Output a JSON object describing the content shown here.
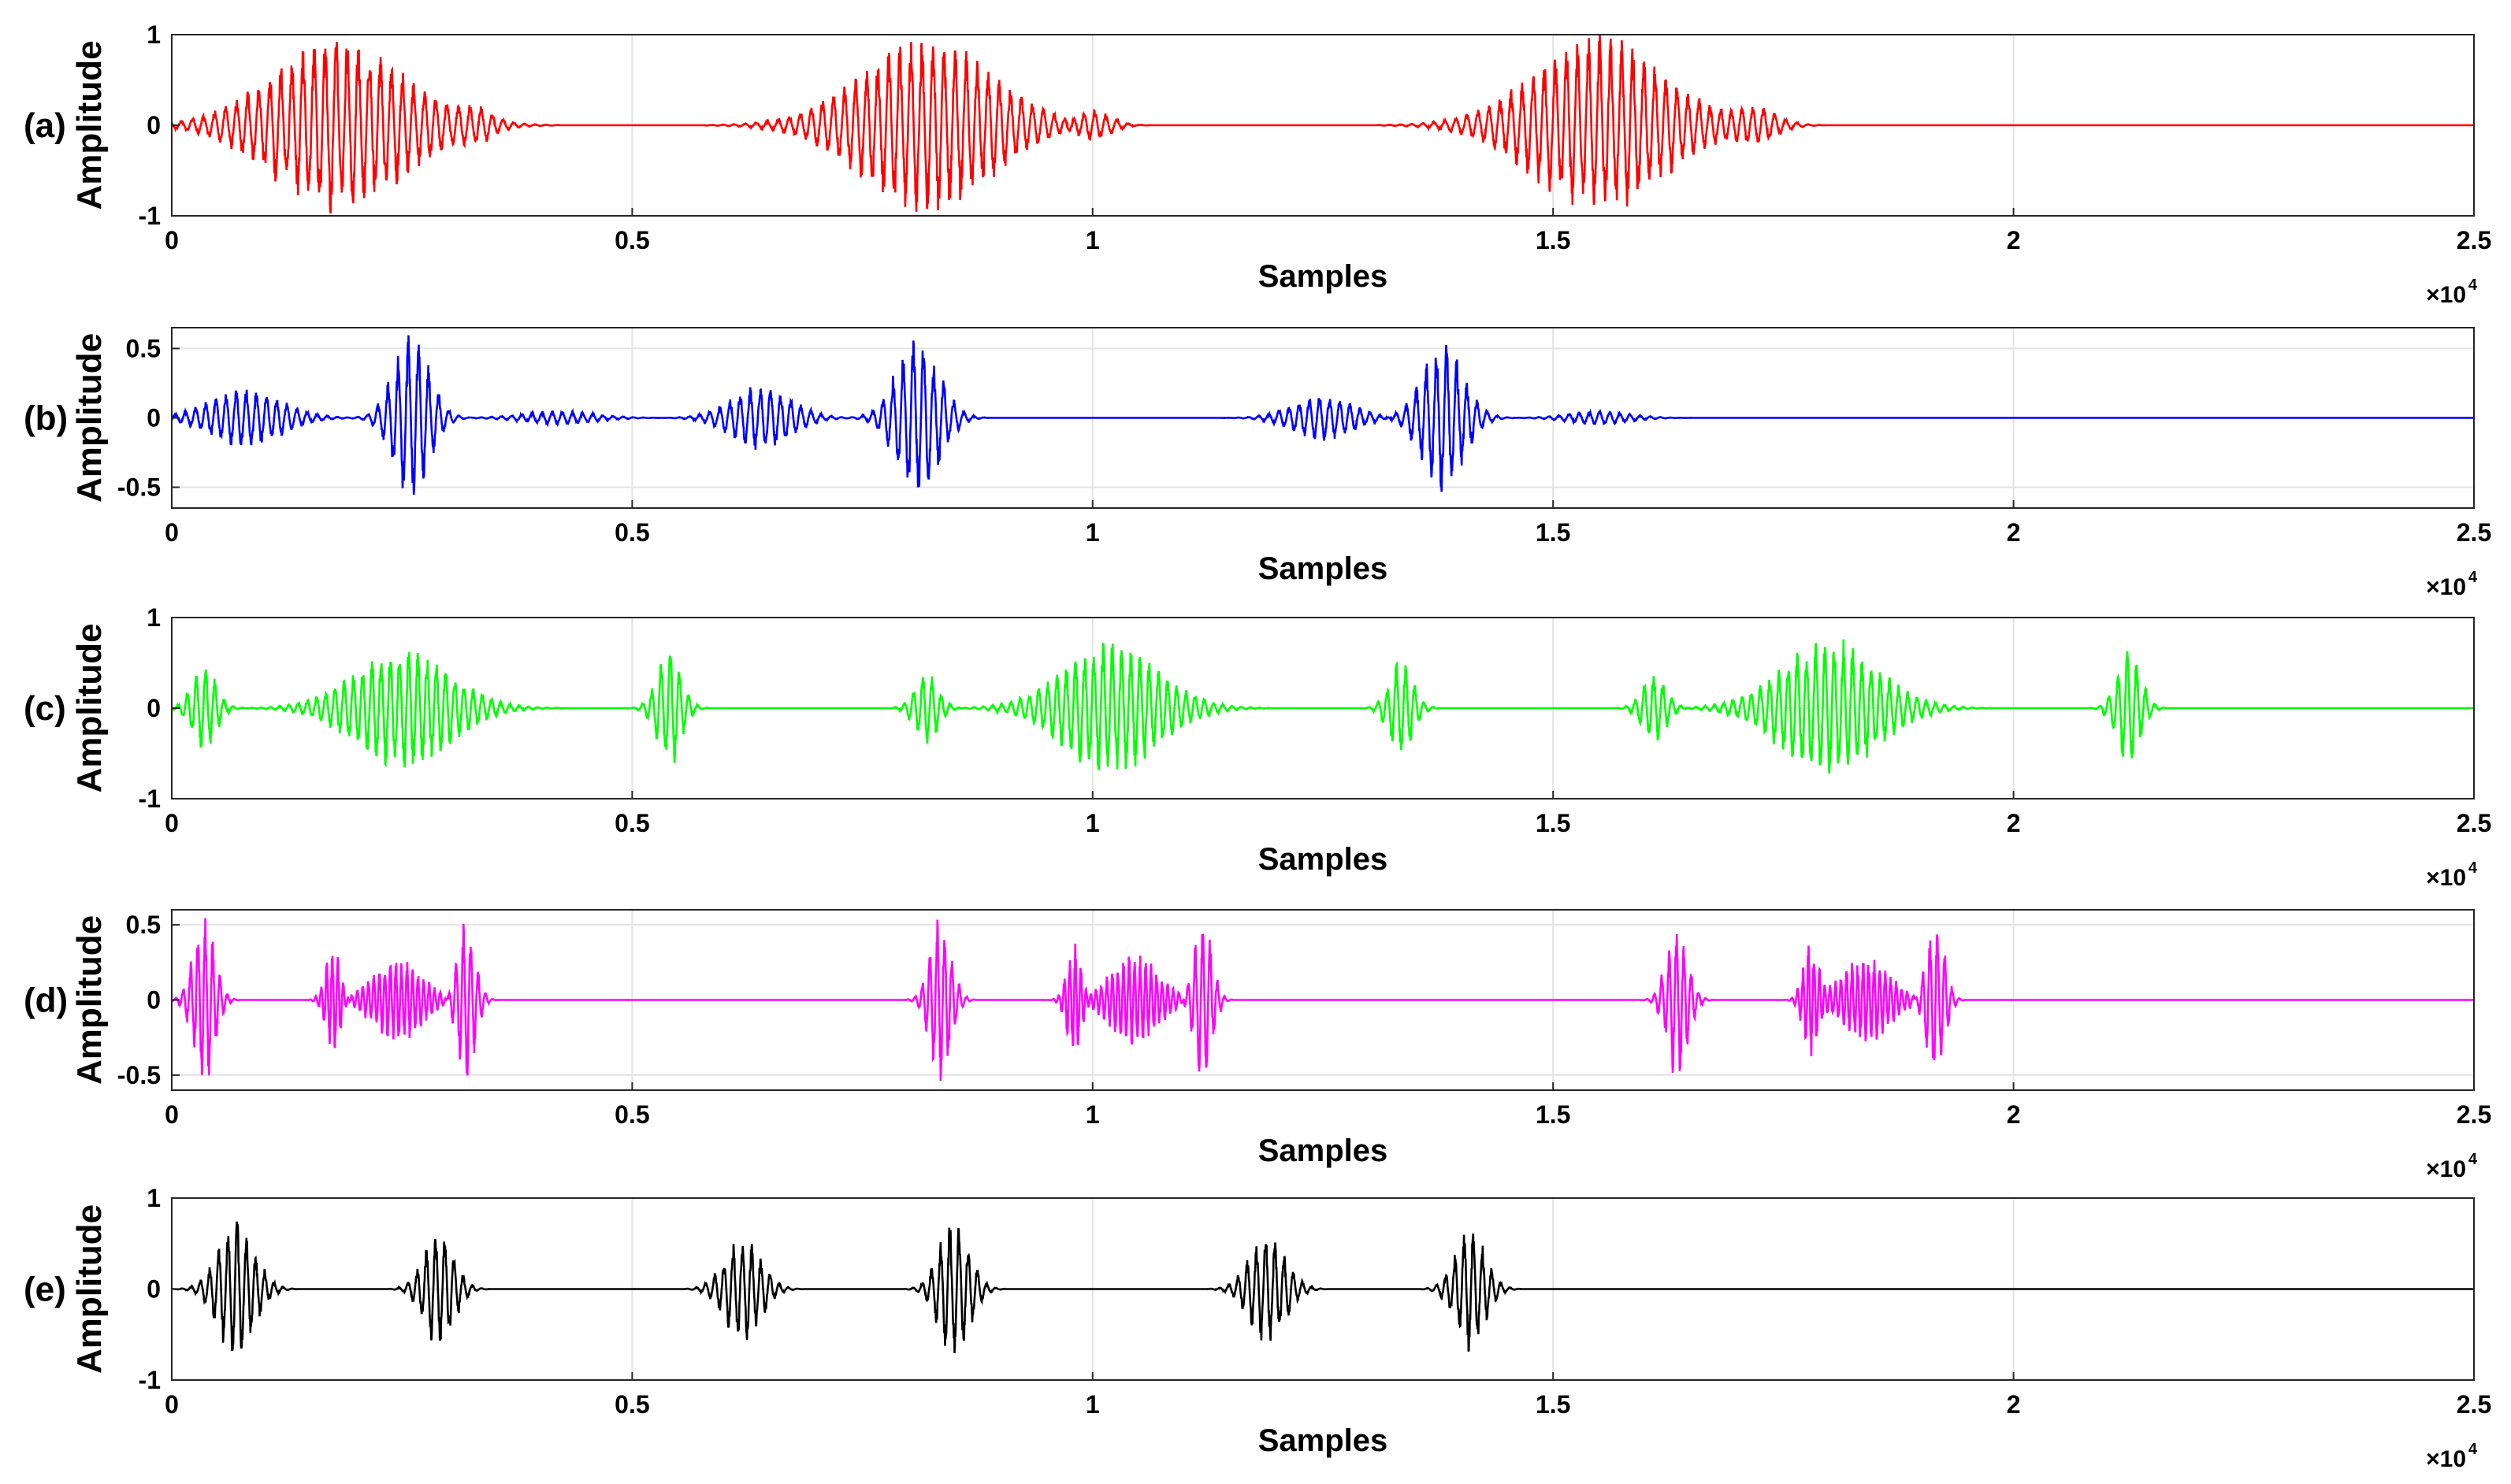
{
  "chart_data": [
    {
      "panel": "(a)",
      "type": "line",
      "color": "#ff0000",
      "xlabel": "Samples",
      "ylabel": "Amplitude",
      "x_multiplier": "×10",
      "x_exponent": "4",
      "xlim": [
        0,
        2.5
      ],
      "ylim": [
        -1,
        1
      ],
      "grid": true,
      "xticks": [
        "0",
        "0.5",
        "1",
        "1.5",
        "2",
        "2.5"
      ],
      "yticks": [
        {
          "v": 1,
          "t": "1"
        },
        {
          "v": 0,
          "t": "0"
        },
        {
          "v": -1,
          "t": "-1"
        }
      ],
      "bursts": [
        {
          "center": 0.18,
          "width": 0.22,
          "amp": 1.0,
          "period": 0.012
        },
        {
          "center": 0.33,
          "width": 0.06,
          "amp": 0.18,
          "period": 0.012
        },
        {
          "center": 0.82,
          "width": 0.22,
          "amp": 1.0,
          "period": 0.012
        },
        {
          "center": 1.0,
          "width": 0.06,
          "amp": 0.2,
          "period": 0.012
        },
        {
          "center": 1.55,
          "width": 0.22,
          "amp": 1.0,
          "period": 0.012
        },
        {
          "center": 1.72,
          "width": 0.07,
          "amp": 0.2,
          "period": 0.012
        }
      ]
    },
    {
      "panel": "(b)",
      "type": "line",
      "color": "#0000ff",
      "xlabel": "Samples",
      "ylabel": "Amplitude",
      "x_multiplier": "×10",
      "x_exponent": "4",
      "xlim": [
        0,
        2.5
      ],
      "ylim": [
        -0.65,
        0.65
      ],
      "grid": true,
      "xticks": [
        "0",
        "0.5",
        "1",
        "1.5",
        "2",
        "2.5"
      ],
      "yticks": [
        {
          "v": 0.5,
          "t": "0.5"
        },
        {
          "v": 0,
          "t": "0"
        },
        {
          "v": -0.5,
          "t": "-0.5"
        }
      ],
      "bursts": [
        {
          "center": 0.08,
          "width": 0.12,
          "amp": 0.22,
          "period": 0.011
        },
        {
          "center": 0.26,
          "width": 0.06,
          "amp": 0.62,
          "period": 0.011
        },
        {
          "center": 0.42,
          "width": 0.12,
          "amp": 0.05,
          "period": 0.011
        },
        {
          "center": 0.64,
          "width": 0.1,
          "amp": 0.24,
          "period": 0.011
        },
        {
          "center": 0.81,
          "width": 0.07,
          "amp": 0.62,
          "period": 0.011
        },
        {
          "center": 1.25,
          "width": 0.1,
          "amp": 0.17,
          "period": 0.011
        },
        {
          "center": 1.38,
          "width": 0.07,
          "amp": 0.55,
          "period": 0.011
        },
        {
          "center": 1.55,
          "width": 0.1,
          "amp": 0.05,
          "period": 0.011
        }
      ]
    },
    {
      "panel": "(c)",
      "type": "line",
      "color": "#00ff00",
      "xlabel": "Samples",
      "ylabel": "Amplitude",
      "x_multiplier": "×10",
      "x_exponent": "4",
      "xlim": [
        0,
        2.5
      ],
      "ylim": [
        -1,
        1
      ],
      "grid": true,
      "xticks": [
        "0",
        "0.5",
        "1",
        "1.5",
        "2",
        "2.5"
      ],
      "yticks": [
        {
          "v": 1,
          "t": "1"
        },
        {
          "v": 0,
          "t": "0"
        },
        {
          "v": -1,
          "t": "-1"
        }
      ],
      "bursts": [
        {
          "center": 0.035,
          "width": 0.04,
          "amp": 0.5,
          "period": 0.01
        },
        {
          "center": 0.25,
          "width": 0.16,
          "amp": 0.7,
          "period": 0.01
        },
        {
          "center": 0.54,
          "width": 0.04,
          "amp": 0.7,
          "period": 0.01
        },
        {
          "center": 0.82,
          "width": 0.04,
          "amp": 0.4,
          "period": 0.01
        },
        {
          "center": 1.02,
          "width": 0.16,
          "amp": 0.75,
          "period": 0.01
        },
        {
          "center": 1.335,
          "width": 0.04,
          "amp": 0.55,
          "period": 0.01
        },
        {
          "center": 1.61,
          "width": 0.04,
          "amp": 0.4,
          "period": 0.01
        },
        {
          "center": 1.8,
          "width": 0.16,
          "amp": 0.8,
          "period": 0.01
        },
        {
          "center": 2.125,
          "width": 0.04,
          "amp": 0.65,
          "period": 0.01
        }
      ]
    },
    {
      "panel": "(d)",
      "type": "line",
      "color": "#ff00ff",
      "xlabel": "Samples",
      "ylabel": "Amplitude",
      "x_multiplier": "×10",
      "x_exponent": "4",
      "xlim": [
        0,
        2.5
      ],
      "ylim": [
        -0.6,
        0.6
      ],
      "grid": true,
      "xticks": [
        "0",
        "0.5",
        "1",
        "1.5",
        "2",
        "2.5"
      ],
      "yticks": [
        {
          "v": 0.5,
          "t": "0.5"
        },
        {
          "v": 0,
          "t": "0"
        },
        {
          "v": -0.5,
          "t": "-0.5"
        }
      ],
      "bursts": [
        {
          "center": 0.035,
          "width": 0.035,
          "amp": 0.6,
          "period": 0.008
        },
        {
          "center": 0.175,
          "width": 0.025,
          "amp": 0.4,
          "period": 0.006
        },
        {
          "center": 0.245,
          "width": 0.08,
          "amp": 0.3,
          "period": 0.006
        },
        {
          "center": 0.32,
          "width": 0.03,
          "amp": 0.55,
          "period": 0.008
        },
        {
          "center": 0.835,
          "width": 0.035,
          "amp": 0.58,
          "period": 0.008
        },
        {
          "center": 0.98,
          "width": 0.025,
          "amp": 0.4,
          "period": 0.006
        },
        {
          "center": 1.045,
          "width": 0.08,
          "amp": 0.32,
          "period": 0.006
        },
        {
          "center": 1.12,
          "width": 0.03,
          "amp": 0.55,
          "period": 0.008
        },
        {
          "center": 1.635,
          "width": 0.035,
          "amp": 0.55,
          "period": 0.008
        },
        {
          "center": 1.78,
          "width": 0.025,
          "amp": 0.4,
          "period": 0.006
        },
        {
          "center": 1.84,
          "width": 0.08,
          "amp": 0.3,
          "period": 0.006
        },
        {
          "center": 1.915,
          "width": 0.03,
          "amp": 0.58,
          "period": 0.008
        }
      ]
    },
    {
      "panel": "(e)",
      "type": "line",
      "color": "#000000",
      "xlabel": "Samples",
      "ylabel": "Amplitude",
      "x_multiplier": "×10",
      "x_exponent": "4",
      "xlim": [
        0,
        2.5
      ],
      "ylim": [
        -1,
        1
      ],
      "grid": true,
      "xticks": [
        "0",
        "0.5",
        "1",
        "1.5",
        "2",
        "2.5"
      ],
      "yticks": [
        {
          "v": 1,
          "t": "1"
        },
        {
          "v": 0,
          "t": "0"
        },
        {
          "v": -1,
          "t": "-1"
        }
      ],
      "bursts": [
        {
          "center": 0.07,
          "width": 0.06,
          "amp": 0.8,
          "period": 0.01
        },
        {
          "center": 0.29,
          "width": 0.05,
          "amp": 0.68,
          "period": 0.01
        },
        {
          "center": 0.62,
          "width": 0.06,
          "amp": 0.6,
          "period": 0.01
        },
        {
          "center": 0.85,
          "width": 0.05,
          "amp": 0.82,
          "period": 0.01
        },
        {
          "center": 1.19,
          "width": 0.06,
          "amp": 0.62,
          "period": 0.01
        },
        {
          "center": 1.41,
          "width": 0.05,
          "amp": 0.7,
          "period": 0.01
        }
      ]
    }
  ]
}
